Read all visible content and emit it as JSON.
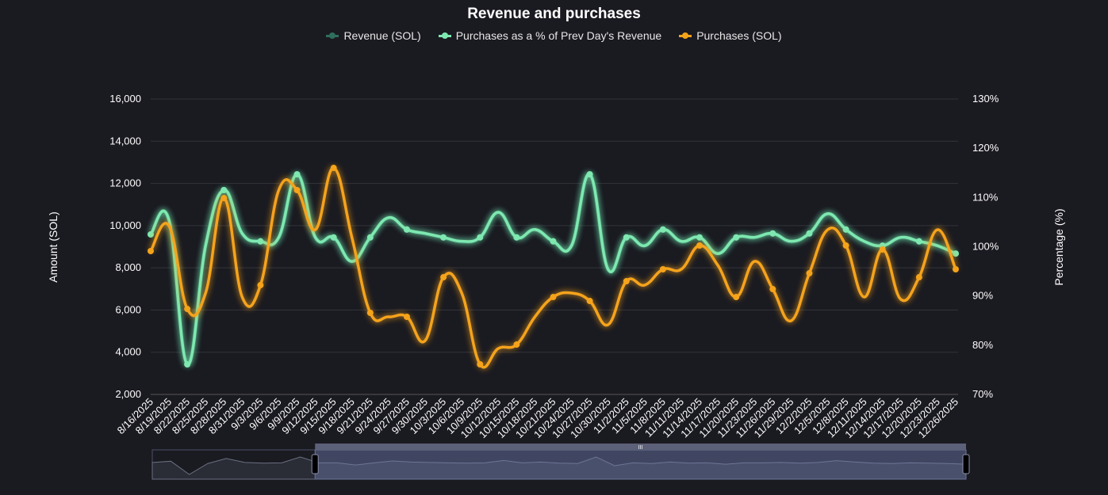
{
  "chart_data": {
    "type": "line",
    "title": "Revenue and purchases",
    "ylabel_left": "Amount (SOL)",
    "ylabel_right": "Percentage (%)",
    "ylim_left": [
      2000,
      16000
    ],
    "ylim_right": [
      70,
      130
    ],
    "yticks_left": [
      "2,000",
      "4,000",
      "6,000",
      "8,000",
      "10,000",
      "12,000",
      "14,000",
      "16,000"
    ],
    "yticks_right": [
      "70%",
      "80%",
      "90%",
      "100%",
      "110%",
      "120%",
      "130%"
    ],
    "grid": true,
    "smooth": true,
    "legend_position": "top",
    "categories": [
      "8/16/2025",
      "8/19/2025",
      "8/22/2025",
      "8/25/2025",
      "8/28/2025",
      "8/31/2025",
      "9/3/2025",
      "9/6/2025",
      "9/9/2025",
      "9/12/2025",
      "9/15/2025",
      "9/18/2025",
      "9/21/2025",
      "9/24/2025",
      "9/27/2025",
      "9/30/2025",
      "10/3/2025",
      "10/6/2025",
      "10/9/2025",
      "10/12/2025",
      "10/15/2025",
      "10/18/2025",
      "10/21/2025",
      "10/24/2025",
      "10/27/2025",
      "10/30/2025",
      "11/2/2025",
      "11/5/2025",
      "11/8/2025",
      "11/11/2025",
      "11/14/2025",
      "11/17/2025",
      "11/20/2025",
      "11/23/2025",
      "11/26/2025",
      "11/29/2025",
      "12/2/2025",
      "12/5/2025",
      "12/8/2025",
      "12/11/2025",
      "12/14/2025",
      "12/17/2025",
      "12/20/2025",
      "12/23/2025",
      "12/26/2025"
    ],
    "series": [
      {
        "name": "Revenue (SOL)",
        "axis": "left",
        "color": "#2f6e5c",
        "values": [
          9581,
          10257,
          3426,
          9056,
          11683,
          9618,
          9243,
          9431,
          12433,
          9431,
          9431,
          8305,
          9431,
          10369,
          9806,
          9618,
          9431,
          9243,
          9431,
          10632,
          9431,
          9806,
          9243,
          9056,
          12433,
          7930,
          9431,
          9056,
          9806,
          9243,
          9431,
          8681,
          9431,
          9431,
          9618,
          9243,
          9618,
          10557,
          9806,
          9243,
          9056,
          9431,
          9243,
          9056,
          8681
        ]
      },
      {
        "name": "Purchases as a % of Prev Day's Revenue",
        "axis": "right",
        "color": "#7ee8b0",
        "values": [
          102.5,
          105.4,
          76.1,
          100.2,
          111.5,
          102.7,
          101.1,
          101.9,
          114.7,
          101.9,
          101.9,
          97.0,
          101.9,
          105.9,
          103.5,
          102.7,
          101.9,
          101.1,
          101.9,
          107.0,
          101.9,
          103.5,
          101.1,
          100.2,
          114.7,
          95.4,
          101.9,
          100.2,
          103.5,
          101.1,
          101.9,
          98.6,
          101.9,
          101.9,
          102.7,
          101.1,
          102.7,
          106.7,
          103.5,
          101.1,
          100.2,
          101.9,
          101.1,
          100.2,
          98.6
        ]
      },
      {
        "name": "Purchases (SOL)",
        "axis": "left",
        "color": "#f5a31a",
        "values": [
          8793,
          9994,
          6053,
          6804,
          11307,
          6616,
          7179,
          11683,
          11683,
          9806,
          12733,
          9431,
          5866,
          5678,
          5678,
          4552,
          7554,
          6804,
          3426,
          4177,
          4364,
          5678,
          6616,
          6804,
          6428,
          5303,
          7366,
          7179,
          7930,
          7930,
          9056,
          8117,
          6616,
          8305,
          6991,
          5490,
          7742,
          9806,
          9056,
          6616,
          8868,
          6504,
          7554,
          9806,
          7930
        ]
      }
    ],
    "data_zoom": {
      "start_percent": 20,
      "end_percent": 100,
      "handle_label": "III"
    }
  }
}
